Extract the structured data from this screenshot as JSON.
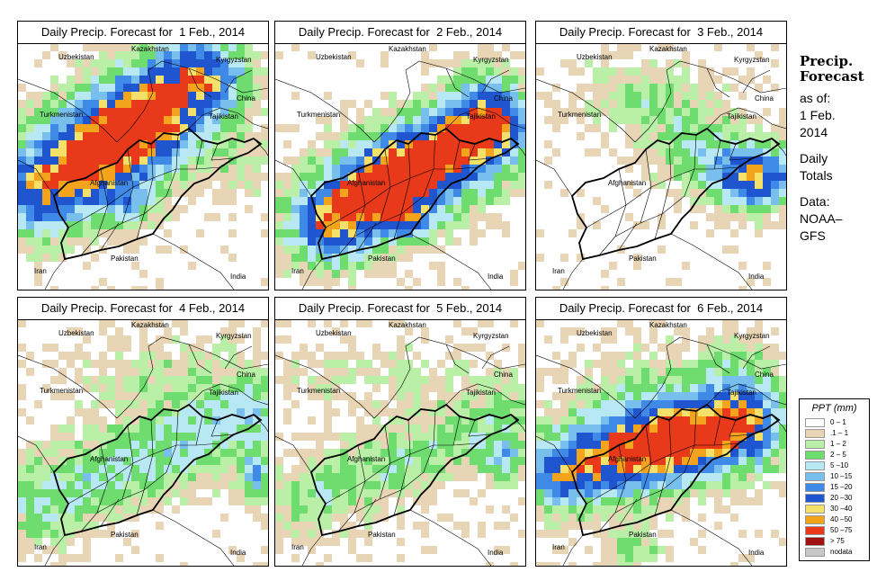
{
  "panels": [
    {
      "title": "Daily Precip. Forecast for  1 Feb., 2014",
      "pattern": "wet1"
    },
    {
      "title": "Daily Precip. Forecast for  2 Feb., 2014",
      "pattern": "wet2"
    },
    {
      "title": "Daily Precip. Forecast for  3 Feb., 2014",
      "pattern": "east"
    },
    {
      "title": "Daily Precip. Forecast for  4 Feb., 2014",
      "pattern": "light"
    },
    {
      "title": "Daily Precip. Forecast for  5 Feb., 2014",
      "pattern": "dry"
    },
    {
      "title": "Daily Precip. Forecast for  6 Feb., 2014",
      "pattern": "wet3"
    }
  ],
  "country_labels": {
    "uzbekistan": "Uzbekistan",
    "kazakhstan": "Kazakhstan",
    "kyrgyzstan": "Kyrgyzstan",
    "china": "China",
    "turkmenistan": "Turkmenistan",
    "tajikistan": "Tajikistan",
    "afghanistan": "Afghanistan",
    "pakistan": "Pakistan",
    "iran": "Iran",
    "india": "India"
  },
  "sidebar": {
    "heading_line1": "Precip.",
    "heading_line2": "Forecast",
    "asof_label": "as of:",
    "date_line1": "1 Feb.",
    "date_line2": "2014",
    "totals_line1": "Daily",
    "totals_line2": "Totals",
    "data_line1": "Data:",
    "data_line2": "NOAA–",
    "data_line3": "GFS"
  },
  "legend": {
    "title": "PPT (mm)",
    "items": [
      {
        "label": "0 – 1",
        "color": "#ffffff"
      },
      {
        "label": ".1 – 1",
        "color": "#e8d5b5"
      },
      {
        "label": "1 – 2",
        "color": "#b9efa7"
      },
      {
        "label": "2 – 5",
        "color": "#6fdc6f"
      },
      {
        "label": "5 –10",
        "color": "#b8e8f4"
      },
      {
        "label": "10 –15",
        "color": "#79bfee"
      },
      {
        "label": "15 –20",
        "color": "#3f8ae6"
      },
      {
        "label": "20 –30",
        "color": "#1f56cf"
      },
      {
        "label": "30 –40",
        "color": "#f5e06a"
      },
      {
        "label": "40 –50",
        "color": "#f4a41c"
      },
      {
        "label": "50 –75",
        "color": "#e8391a"
      },
      {
        "label": "> 75",
        "color": "#a31212"
      },
      {
        "label": "nodata",
        "color": "#c8c8c8"
      }
    ]
  }
}
